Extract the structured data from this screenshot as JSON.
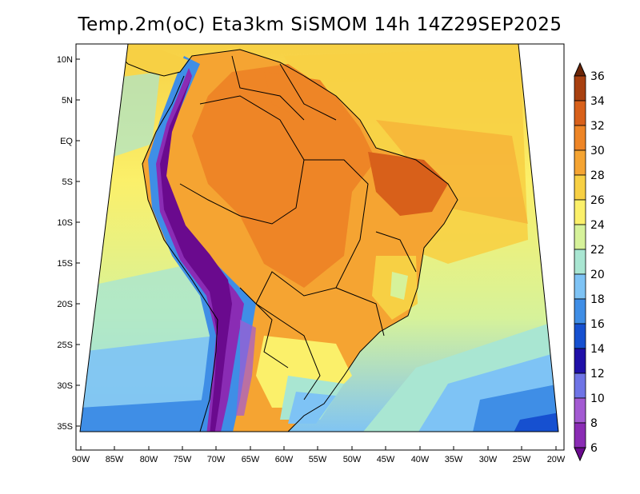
{
  "title": "Temp.2m(oC) Eta3km SiSMOM 14h 14Z29SEP2025",
  "lat_labels": [
    "10N",
    "5N",
    "EQ",
    "5S",
    "10S",
    "15S",
    "20S",
    "25S",
    "30S",
    "35S"
  ],
  "lon_labels": [
    "90W",
    "85W",
    "80W",
    "75W",
    "70W",
    "65W",
    "60W",
    "55W",
    "50W",
    "45W",
    "40W",
    "35W",
    "30W",
    "25W",
    "20W"
  ],
  "colorbar": {
    "levels": [
      "6",
      "8",
      "10",
      "12",
      "14",
      "16",
      "18",
      "20",
      "22",
      "24",
      "26",
      "28",
      "30",
      "32",
      "34",
      "36"
    ],
    "colors": [
      "#6a0a8e",
      "#8a2cb4",
      "#a35ad2",
      "#6f74e6",
      "#1f10a8",
      "#1650d0",
      "#3f8ee6",
      "#7ec3f5",
      "#a9e6d2",
      "#d6f29a",
      "#fbf06a",
      "#f7d044",
      "#f5a432",
      "#ee8526",
      "#d8601a",
      "#a84010",
      "#6b2608"
    ]
  }
}
